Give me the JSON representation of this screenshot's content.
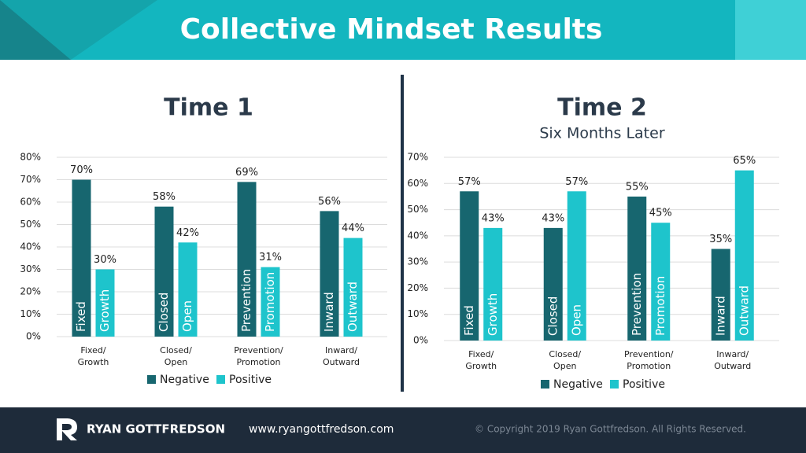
{
  "title": "Collective Mindset Results",
  "chart_data": [
    {
      "type": "bar",
      "title": "Time 1",
      "categories": [
        [
          "Fixed/",
          "Growth"
        ],
        [
          "Closed/",
          "Open"
        ],
        [
          "Prevention/",
          "Promotion"
        ],
        [
          "Inward/",
          "Outward"
        ]
      ],
      "series": [
        {
          "name": "Negative",
          "color": "#17666f",
          "values": [
            70,
            58,
            69,
            56
          ],
          "value_labels": [
            "70%",
            "58%",
            "69%",
            "56%"
          ],
          "bar_labels": [
            "Fixed",
            "Closed",
            "Prevention",
            "Inward"
          ]
        },
        {
          "name": "Positive",
          "color": "#1ec4cc",
          "values": [
            30,
            42,
            31,
            44
          ],
          "value_labels": [
            "30%",
            "42%",
            "31%",
            "44%"
          ],
          "bar_labels": [
            "Growth",
            "Open",
            "Promotion",
            "Outward"
          ]
        }
      ],
      "ylim": [
        0,
        80
      ],
      "yticks": [
        {
          "value": 0,
          "label": "0%"
        },
        {
          "value": 10,
          "label": "10%"
        },
        {
          "value": 20,
          "label": "20%"
        },
        {
          "value": 30,
          "label": "30%"
        },
        {
          "value": 40,
          "label": "40%"
        },
        {
          "value": 50,
          "label": "50%"
        },
        {
          "value": 60,
          "label": "60%"
        },
        {
          "value": 70,
          "label": "70%"
        },
        {
          "value": 80,
          "label": "80%"
        }
      ],
      "grid": true,
      "legend": "bottom"
    },
    {
      "type": "bar",
      "title": "Time 2",
      "subtitle": "Six Months Later",
      "categories": [
        [
          "Fixed/",
          "Growth"
        ],
        [
          "Closed/",
          "Open"
        ],
        [
          "Prevention/",
          "Promotion"
        ],
        [
          "Inward/",
          "Outward"
        ]
      ],
      "series": [
        {
          "name": "Negative",
          "color": "#17666f",
          "values": [
            57,
            43,
            55,
            35
          ],
          "value_labels": [
            "57%",
            "43%",
            "55%",
            "35%"
          ],
          "bar_labels": [
            "Fixed",
            "Closed",
            "Prevention",
            "Inward"
          ]
        },
        {
          "name": "Positive",
          "color": "#1ec4cc",
          "values": [
            43,
            57,
            45,
            65
          ],
          "value_labels": [
            "43%",
            "57%",
            "45%",
            "65%"
          ],
          "bar_labels": [
            "Growth",
            "Open",
            "Promotion",
            "Outward"
          ]
        }
      ],
      "ylim": [
        0,
        70
      ],
      "yticks": [
        {
          "value": 0,
          "label": "0%"
        },
        {
          "value": 10,
          "label": "10%"
        },
        {
          "value": 20,
          "label": "20%"
        },
        {
          "value": 30,
          "label": "30%"
        },
        {
          "value": 40,
          "label": "40%"
        },
        {
          "value": 50,
          "label": "50%"
        },
        {
          "value": 60,
          "label": "60%"
        },
        {
          "value": 70,
          "label": "70%"
        }
      ],
      "grid": true,
      "legend": "bottom"
    }
  ],
  "footer": {
    "brand": "RYAN GOTTFREDSON",
    "url": "www.ryangottfredson.com",
    "copyright": "© Copyright 2019  Ryan Gottfredson. All Rights Reserved."
  }
}
